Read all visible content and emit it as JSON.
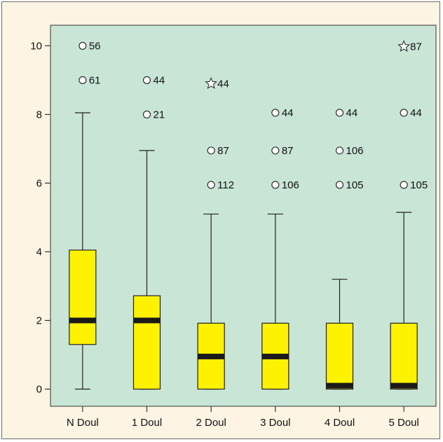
{
  "chart_data": {
    "type": "box",
    "categories": [
      "N Doul",
      "1 Doul",
      "2 Doul",
      "3 Doul",
      "4 Doul",
      "5 Doul"
    ],
    "ylim": [
      -0.5,
      10.6
    ],
    "yticks": [
      0,
      2,
      4,
      6,
      8,
      10
    ],
    "grid": false,
    "colors": {
      "plot_background": "#c9e5d6",
      "page_background": "#fdf4e3",
      "box_fill": "#fff200",
      "median": "#1a1a1a",
      "axis": "#333333"
    },
    "boxes": [
      {
        "category": "N Doul",
        "min": 0,
        "q1": 1.3,
        "median": 2.0,
        "q3": 4.05,
        "max": 8.05,
        "outliers": [
          {
            "y": 10,
            "label": "56",
            "marker": "circle"
          },
          {
            "y": 9,
            "label": "61",
            "marker": "circle"
          }
        ]
      },
      {
        "category": "1 Doul",
        "min": 0,
        "q1": 0,
        "median": 2.0,
        "q3": 2.72,
        "max": 6.95,
        "outliers": [
          {
            "y": 9,
            "label": "44",
            "marker": "circle"
          },
          {
            "y": 8,
            "label": "21",
            "marker": "circle"
          }
        ]
      },
      {
        "category": "2 Doul",
        "min": 0,
        "q1": 0,
        "median": 0.95,
        "q3": 1.92,
        "max": 5.1,
        "outliers": [
          {
            "y": 8.9,
            "label": "44",
            "marker": "star"
          },
          {
            "y": 6.95,
            "label": "87",
            "marker": "circle"
          },
          {
            "y": 5.95,
            "label": "112",
            "marker": "circle"
          }
        ]
      },
      {
        "category": "3 Doul",
        "min": 0,
        "q1": 0,
        "median": 0.95,
        "q3": 1.92,
        "max": 5.1,
        "outliers": [
          {
            "y": 8.05,
            "label": "44",
            "marker": "circle"
          },
          {
            "y": 6.95,
            "label": "87",
            "marker": "circle"
          },
          {
            "y": 5.95,
            "label": "106",
            "marker": "circle"
          }
        ]
      },
      {
        "category": "4 Doul",
        "min": 0,
        "q1": 0,
        "median": 0.1,
        "q3": 1.92,
        "max": 3.2,
        "outliers": [
          {
            "y": 8.05,
            "label": "44",
            "marker": "circle"
          },
          {
            "y": 6.95,
            "label": "106",
            "marker": "circle"
          },
          {
            "y": 5.95,
            "label": "105",
            "marker": "circle"
          }
        ]
      },
      {
        "category": "5 Doul",
        "min": 0,
        "q1": 0,
        "median": 0.1,
        "q3": 1.92,
        "max": 5.15,
        "outliers": [
          {
            "y": 9.98,
            "label": "87",
            "marker": "star"
          },
          {
            "y": 8.05,
            "label": "44",
            "marker": "circle"
          },
          {
            "y": 5.95,
            "label": "105",
            "marker": "circle"
          }
        ]
      }
    ]
  }
}
